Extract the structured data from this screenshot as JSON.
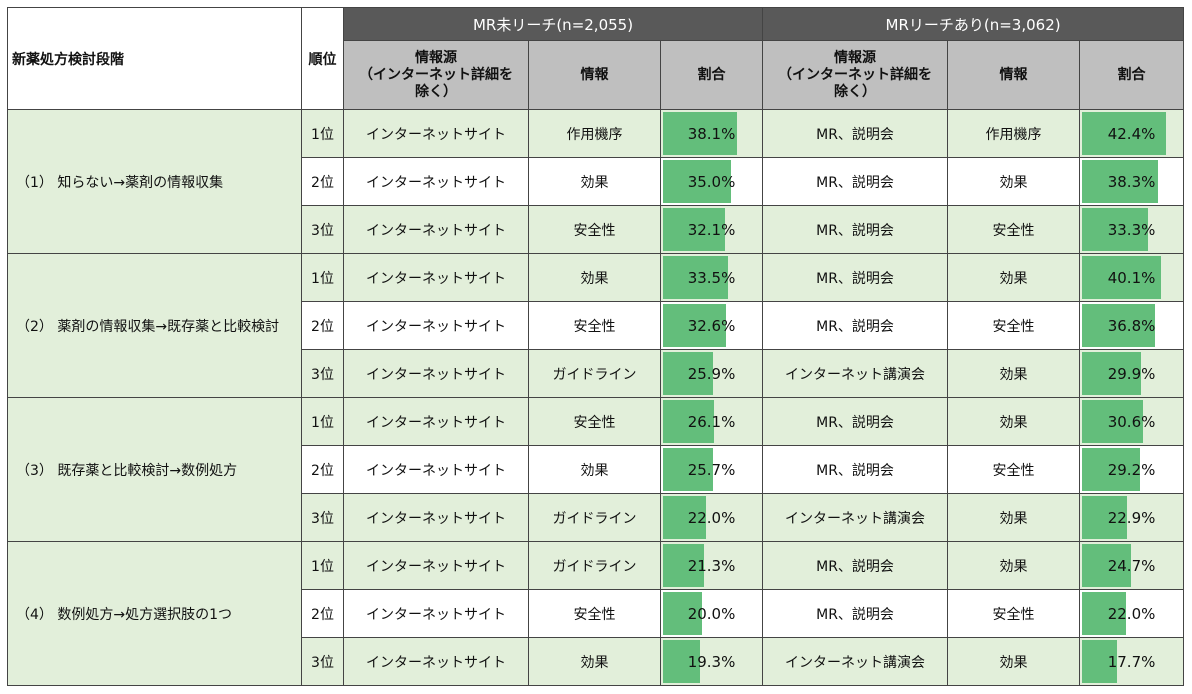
{
  "header": {
    "stage_label": "新薬処方検討段階",
    "rank_label": "順位",
    "group1_label": "MR未リーチ(n=2,055)",
    "group2_label": "MRリーチあり(n=3,062)",
    "source_label": "情報源\n（インターネット詳細を\n除く）",
    "info_label": "情報",
    "ratio_label": "割合"
  },
  "bar_max": 50,
  "stages": [
    {
      "label": "（1） 知らない→薬剤の情報収集",
      "rows": [
        {
          "rank": "1位",
          "g1_source": "インターネットサイト",
          "g1_info": "作用機序",
          "g1_pct": 38.1,
          "g1_pct_text": "38.1%",
          "g2_source": "MR、説明会",
          "g2_info": "作用機序",
          "g2_pct": 42.4,
          "g2_pct_text": "42.4%"
        },
        {
          "rank": "2位",
          "g1_source": "インターネットサイト",
          "g1_info": "効果",
          "g1_pct": 35.0,
          "g1_pct_text": "35.0%",
          "g2_source": "MR、説明会",
          "g2_info": "効果",
          "g2_pct": 38.3,
          "g2_pct_text": "38.3%"
        },
        {
          "rank": "3位",
          "g1_source": "インターネットサイト",
          "g1_info": "安全性",
          "g1_pct": 32.1,
          "g1_pct_text": "32.1%",
          "g2_source": "MR、説明会",
          "g2_info": "安全性",
          "g2_pct": 33.3,
          "g2_pct_text": "33.3%"
        }
      ]
    },
    {
      "label": "（2） 薬剤の情報収集→既存薬と比較検討",
      "rows": [
        {
          "rank": "1位",
          "g1_source": "インターネットサイト",
          "g1_info": "効果",
          "g1_pct": 33.5,
          "g1_pct_text": "33.5%",
          "g2_source": "MR、説明会",
          "g2_info": "効果",
          "g2_pct": 40.1,
          "g2_pct_text": "40.1%"
        },
        {
          "rank": "2位",
          "g1_source": "インターネットサイト",
          "g1_info": "安全性",
          "g1_pct": 32.6,
          "g1_pct_text": "32.6%",
          "g2_source": "MR、説明会",
          "g2_info": "安全性",
          "g2_pct": 36.8,
          "g2_pct_text": "36.8%"
        },
        {
          "rank": "3位",
          "g1_source": "インターネットサイト",
          "g1_info": "ガイドライン",
          "g1_pct": 25.9,
          "g1_pct_text": "25.9%",
          "g2_source": "インターネット講演会",
          "g2_info": "効果",
          "g2_pct": 29.9,
          "g2_pct_text": "29.9%"
        }
      ]
    },
    {
      "label": "（3） 既存薬と比較検討→数例処方",
      "rows": [
        {
          "rank": "1位",
          "g1_source": "インターネットサイト",
          "g1_info": "安全性",
          "g1_pct": 26.1,
          "g1_pct_text": "26.1%",
          "g2_source": "MR、説明会",
          "g2_info": "効果",
          "g2_pct": 30.6,
          "g2_pct_text": "30.6%"
        },
        {
          "rank": "2位",
          "g1_source": "インターネットサイト",
          "g1_info": "効果",
          "g1_pct": 25.7,
          "g1_pct_text": "25.7%",
          "g2_source": "MR、説明会",
          "g2_info": "安全性",
          "g2_pct": 29.2,
          "g2_pct_text": "29.2%"
        },
        {
          "rank": "3位",
          "g1_source": "インターネットサイト",
          "g1_info": "ガイドライン",
          "g1_pct": 22.0,
          "g1_pct_text": "22.0%",
          "g2_source": "インターネット講演会",
          "g2_info": "効果",
          "g2_pct": 22.9,
          "g2_pct_text": "22.9%"
        }
      ]
    },
    {
      "label": "（4） 数例処方→処方選択肢の1つ",
      "rows": [
        {
          "rank": "1位",
          "g1_source": "インターネットサイト",
          "g1_info": "ガイドライン",
          "g1_pct": 21.3,
          "g1_pct_text": "21.3%",
          "g2_source": "MR、説明会",
          "g2_info": "効果",
          "g2_pct": 24.7,
          "g2_pct_text": "24.7%"
        },
        {
          "rank": "2位",
          "g1_source": "インターネットサイト",
          "g1_info": "安全性",
          "g1_pct": 20.0,
          "g1_pct_text": "20.0%",
          "g2_source": "MR、説明会",
          "g2_info": "安全性",
          "g2_pct": 22.0,
          "g2_pct_text": "22.0%"
        },
        {
          "rank": "3位",
          "g1_source": "インターネットサイト",
          "g1_info": "効果",
          "g1_pct": 19.3,
          "g1_pct_text": "19.3%",
          "g2_source": "インターネット講演会",
          "g2_info": "効果",
          "g2_pct": 17.7,
          "g2_pct_text": "17.7%"
        }
      ]
    }
  ],
  "colors": {
    "header_dark": "#595959",
    "header_grey": "#bfbfbf",
    "stripe_green": "#e2efda",
    "bar_green": "#63be7b"
  }
}
